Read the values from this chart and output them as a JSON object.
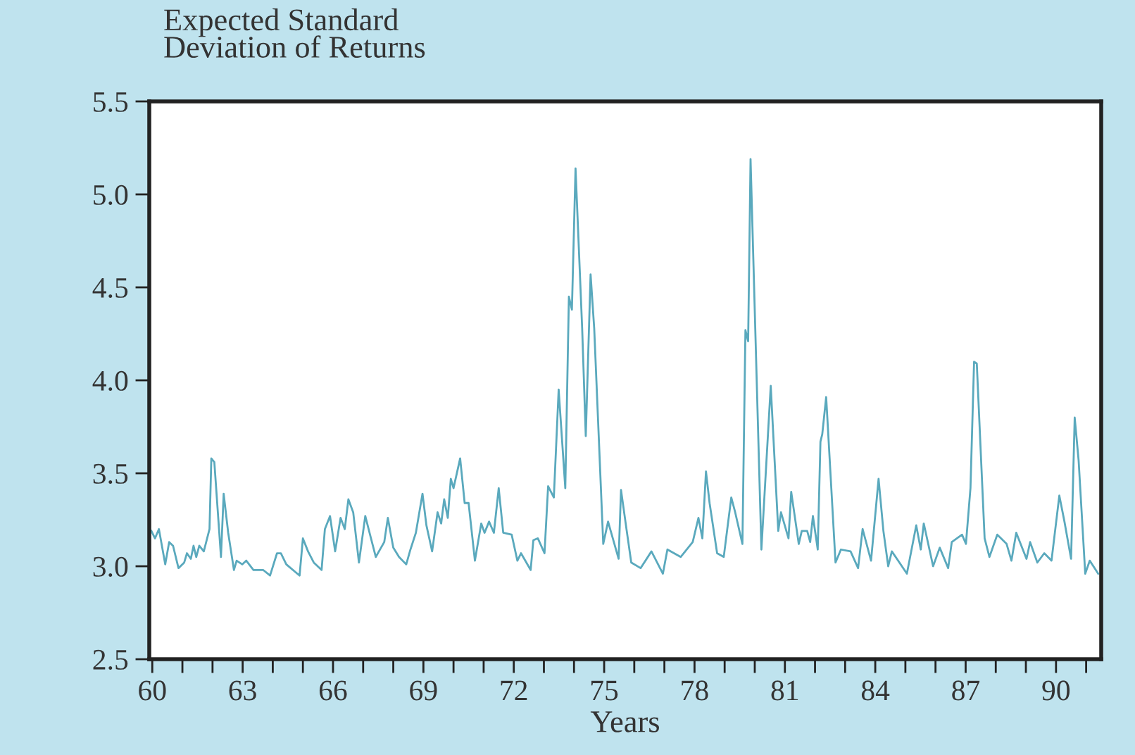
{
  "chart_data": {
    "type": "line",
    "ylabel": "Expected Standard\nDeviation of Returns",
    "xlabel": "Years",
    "xlim": [
      59.9,
      91.5
    ],
    "ylim": [
      2.5,
      5.5
    ],
    "yticks": [
      {
        "value": 2.5,
        "label": "2.5"
      },
      {
        "value": 3.0,
        "label": "3.0"
      },
      {
        "value": 3.5,
        "label": "3.5"
      },
      {
        "value": 4.0,
        "label": "4.0"
      },
      {
        "value": 4.5,
        "label": "4.5"
      },
      {
        "value": 5.0,
        "label": "5.0"
      },
      {
        "value": 5.5,
        "label": "5.5"
      }
    ],
    "xticks": [
      60,
      {
        "value": 61,
        "label": null
      },
      {
        "value": 62,
        "label": null
      },
      63,
      {
        "value": 64,
        "label": null
      },
      {
        "value": 65,
        "label": null
      },
      66,
      {
        "value": 67,
        "label": null
      },
      {
        "value": 68,
        "label": null
      },
      69,
      {
        "value": 70,
        "label": null
      },
      {
        "value": 71,
        "label": null
      },
      72,
      {
        "value": 73,
        "label": null
      },
      {
        "value": 74,
        "label": null
      },
      75,
      {
        "value": 76,
        "label": null
      },
      {
        "value": 77,
        "label": null
      },
      78,
      {
        "value": 79,
        "label": null
      },
      {
        "value": 80,
        "label": null
      },
      81,
      {
        "value": 82,
        "label": null
      },
      {
        "value": 83,
        "label": null
      },
      84,
      {
        "value": 85,
        "label": null
      },
      {
        "value": 86,
        "label": null
      },
      87,
      {
        "value": 88,
        "label": null
      },
      {
        "value": 89,
        "label": null
      },
      90,
      {
        "value": 91,
        "label": null
      }
    ],
    "grid": false,
    "marker": "none",
    "line_style": "solid",
    "series": [
      {
        "color": "#5aa9bd",
        "x": [
          59.97,
          60.09,
          60.22,
          60.43,
          60.56,
          60.69,
          60.87,
          61.06,
          61.15,
          61.28,
          61.37,
          61.46,
          61.56,
          61.71,
          61.9,
          61.96,
          62.06,
          62.28,
          62.37,
          62.52,
          62.71,
          62.8,
          62.99,
          63.12,
          63.36,
          63.68,
          63.91,
          64.14,
          64.27,
          64.45,
          64.89,
          65.0,
          65.17,
          65.36,
          65.62,
          65.73,
          65.9,
          66.07,
          66.25,
          66.39,
          66.51,
          66.67,
          66.86,
          67.07,
          67.26,
          67.42,
          67.7,
          67.82,
          68.0,
          68.19,
          68.43,
          68.57,
          68.75,
          68.97,
          69.1,
          69.29,
          69.47,
          69.59,
          69.69,
          69.81,
          69.91,
          70.0,
          70.22,
          70.37,
          70.5,
          70.71,
          70.92,
          71.03,
          71.18,
          71.34,
          71.5,
          71.65,
          71.93,
          72.12,
          72.24,
          72.56,
          72.65,
          72.8,
          73.02,
          73.14,
          73.33,
          73.49,
          73.71,
          73.83,
          73.93,
          74.05,
          74.27,
          74.39,
          74.55,
          74.67,
          74.97,
          75.13,
          75.48,
          75.56,
          75.75,
          75.9,
          76.21,
          76.57,
          76.95,
          77.1,
          77.54,
          77.94,
          78.13,
          78.26,
          78.38,
          78.5,
          78.75,
          78.97,
          79.22,
          79.35,
          79.59,
          79.69,
          79.78,
          79.86,
          80.22,
          80.53,
          80.78,
          80.87,
          81.12,
          81.21,
          81.46,
          81.56,
          81.74,
          81.84,
          81.93,
          82.09,
          82.18,
          82.24,
          82.37,
          82.68,
          82.86,
          83.18,
          83.43,
          83.58,
          83.86,
          84.11,
          84.27,
          84.43,
          84.55,
          85.05,
          85.36,
          85.51,
          85.61,
          85.92,
          86.14,
          86.42,
          86.54,
          86.88,
          87.01,
          87.16,
          87.28,
          87.37,
          87.63,
          87.79,
          88.05,
          88.36,
          88.52,
          88.68,
          89.02,
          89.14,
          89.38,
          89.61,
          89.85,
          90.11,
          90.28,
          90.5,
          90.62,
          90.75,
          90.97,
          91.12,
          91.4
        ],
        "values": [
          3.19,
          3.15,
          3.2,
          3.01,
          3.13,
          3.11,
          2.99,
          3.02,
          3.07,
          3.04,
          3.11,
          3.05,
          3.11,
          3.08,
          3.2,
          3.58,
          3.56,
          3.05,
          3.39,
          3.18,
          2.98,
          3.03,
          3.01,
          3.03,
          2.98,
          2.98,
          2.95,
          3.07,
          3.07,
          3.01,
          2.95,
          3.15,
          3.08,
          3.02,
          2.98,
          3.2,
          3.27,
          3.08,
          3.26,
          3.2,
          3.36,
          3.29,
          3.02,
          3.27,
          3.15,
          3.05,
          3.13,
          3.26,
          3.1,
          3.05,
          3.01,
          3.09,
          3.18,
          3.39,
          3.22,
          3.08,
          3.29,
          3.23,
          3.36,
          3.26,
          3.47,
          3.42,
          3.58,
          3.34,
          3.34,
          3.03,
          3.23,
          3.18,
          3.24,
          3.18,
          3.42,
          3.18,
          3.17,
          3.03,
          3.07,
          2.98,
          3.14,
          3.15,
          3.07,
          3.43,
          3.37,
          3.95,
          3.42,
          4.45,
          4.38,
          5.14,
          4.28,
          3.7,
          4.57,
          4.28,
          3.12,
          3.24,
          3.04,
          3.41,
          3.19,
          3.02,
          2.99,
          3.08,
          2.96,
          3.09,
          3.05,
          3.13,
          3.26,
          3.15,
          3.51,
          3.34,
          3.07,
          3.05,
          3.37,
          3.29,
          3.12,
          4.27,
          4.21,
          5.19,
          3.09,
          3.97,
          3.19,
          3.29,
          3.15,
          3.4,
          3.12,
          3.19,
          3.19,
          3.13,
          3.27,
          3.09,
          3.67,
          3.71,
          3.91,
          3.02,
          3.09,
          3.08,
          2.99,
          3.2,
          3.03,
          3.47,
          3.19,
          3.0,
          3.08,
          2.96,
          3.22,
          3.09,
          3.23,
          3.0,
          3.1,
          2.99,
          3.13,
          3.17,
          3.12,
          3.42,
          4.1,
          4.09,
          3.15,
          3.05,
          3.17,
          3.12,
          3.03,
          3.18,
          3.04,
          3.13,
          3.02,
          3.07,
          3.03,
          3.38,
          3.24,
          3.04,
          3.8,
          3.57,
          2.96,
          3.03,
          2.96
        ]
      }
    ]
  }
}
